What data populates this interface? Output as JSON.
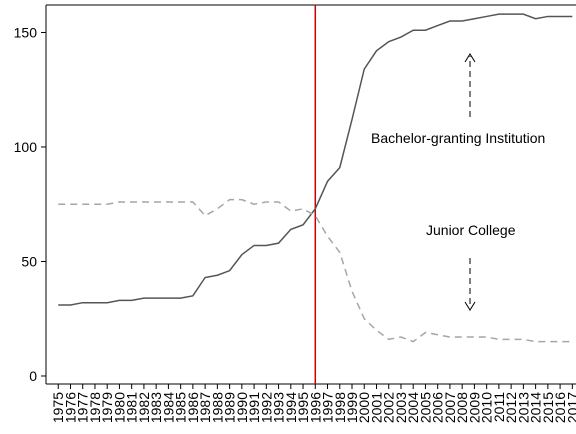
{
  "chart_data": {
    "type": "line",
    "x": [
      1975,
      1976,
      1977,
      1978,
      1979,
      1980,
      1981,
      1982,
      1983,
      1984,
      1985,
      1986,
      1987,
      1988,
      1989,
      1990,
      1991,
      1992,
      1993,
      1994,
      1995,
      1996,
      1997,
      1998,
      1999,
      2000,
      2001,
      2002,
      2003,
      2004,
      2005,
      2006,
      2007,
      2008,
      2009,
      2010,
      2011,
      2012,
      2013,
      2014,
      2015,
      2016,
      2017
    ],
    "series": [
      {
        "color": "#555555",
        "dash": "solid",
        "values": [
          31,
          31,
          32,
          32,
          32,
          33,
          33,
          34,
          34,
          34,
          34,
          35,
          43,
          44,
          46,
          53,
          57,
          57,
          58,
          64,
          66,
          73,
          85,
          91,
          112,
          134,
          142,
          146,
          148,
          151,
          151,
          153,
          155,
          155,
          156,
          157,
          158,
          158,
          158,
          156,
          157,
          157,
          157
        ]
      },
      {
        "color": "#a6a6a6",
        "dash": "dashed",
        "values": [
          75,
          75,
          75,
          75,
          75,
          76,
          76,
          76,
          76,
          76,
          76,
          76,
          70,
          73,
          77,
          77,
          75,
          76,
          76,
          72,
          73,
          70,
          61,
          54,
          37,
          25,
          20,
          16,
          17,
          15,
          19,
          18,
          17,
          17,
          17,
          17,
          16,
          16,
          16,
          15,
          15,
          15,
          15
        ]
      }
    ],
    "xlim": [
      1974,
      2017.3
    ],
    "xticks": [
      1975,
      1976,
      1977,
      1978,
      1979,
      1980,
      1981,
      1982,
      1983,
      1984,
      1985,
      1986,
      1987,
      1988,
      1989,
      1990,
      1991,
      1992,
      1993,
      1994,
      1995,
      1996,
      1997,
      1998,
      1999,
      2000,
      2001,
      2002,
      2003,
      2004,
      2005,
      2006,
      2007,
      2008,
      2009,
      2010,
      2011,
      2012,
      2013,
      2014,
      2015,
      2016,
      2017
    ],
    "ylim": [
      -3.5,
      162
    ],
    "yticks": [
      0,
      50,
      100,
      150
    ],
    "vline": {
      "x": 1996,
      "color": "#cc0000"
    },
    "annotations": [
      "Bachelor-granting Institution",
      "Junior College"
    ]
  }
}
